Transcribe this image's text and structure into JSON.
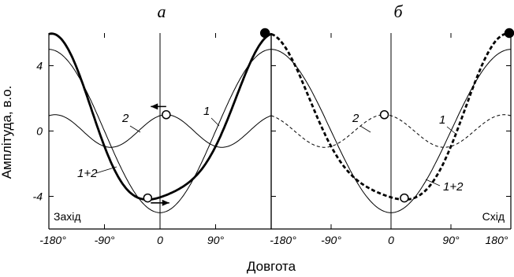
{
  "chart_data": [
    {
      "type": "line",
      "panel_letter": "а",
      "region": "Захід",
      "xlabel": "Довгота",
      "ylabel": "Амплітуда, в.о.",
      "xlim": [
        -180,
        180
      ],
      "ylim": [
        -6,
        6
      ],
      "x_ticks": [
        "-180°",
        "-90°",
        "0",
        "90°"
      ],
      "y_ticks": [
        "4",
        "0",
        "-4"
      ],
      "series": [
        {
          "name": "1",
          "style": "thin-solid",
          "formula": "-5*cos(x)"
        },
        {
          "name": "2",
          "style": "thin-solid",
          "formula": "cos(2*(x-10))"
        },
        {
          "name": "1+2",
          "style": "thick-solid"
        }
      ],
      "markers": [
        {
          "x": 10,
          "y": 1.0,
          "kind": "open-circle"
        },
        {
          "x": -20,
          "y": -4.1,
          "kind": "open-circle"
        },
        {
          "x": 170,
          "y": 6.0,
          "kind": "filled-circle"
        }
      ],
      "arrows": [
        {
          "x_from": 10,
          "x_to": -15,
          "y": 1.5
        },
        {
          "x_from": -15,
          "x_to": 15,
          "y": -4.4
        }
      ]
    },
    {
      "type": "line",
      "panel_letter": "б",
      "region": "Схід",
      "xlim": [
        -180,
        180
      ],
      "ylim": [
        -6,
        6
      ],
      "x_ticks": [
        "-180°",
        "-90°",
        "0",
        "90°",
        "180°"
      ],
      "series": [
        {
          "name": "1",
          "style": "thin-solid",
          "formula": "-5*cos(x)"
        },
        {
          "name": "2",
          "style": "thin-dashed",
          "formula": "cos(2*(x+10))"
        },
        {
          "name": "1+2",
          "style": "thick-dashed"
        }
      ],
      "markers": [
        {
          "x": -10,
          "y": 1.0,
          "kind": "open-circle"
        },
        {
          "x": 20,
          "y": -4.1,
          "kind": "open-circle"
        },
        {
          "x": 180,
          "y": 6.0,
          "kind": "filled-circle"
        }
      ]
    }
  ]
}
